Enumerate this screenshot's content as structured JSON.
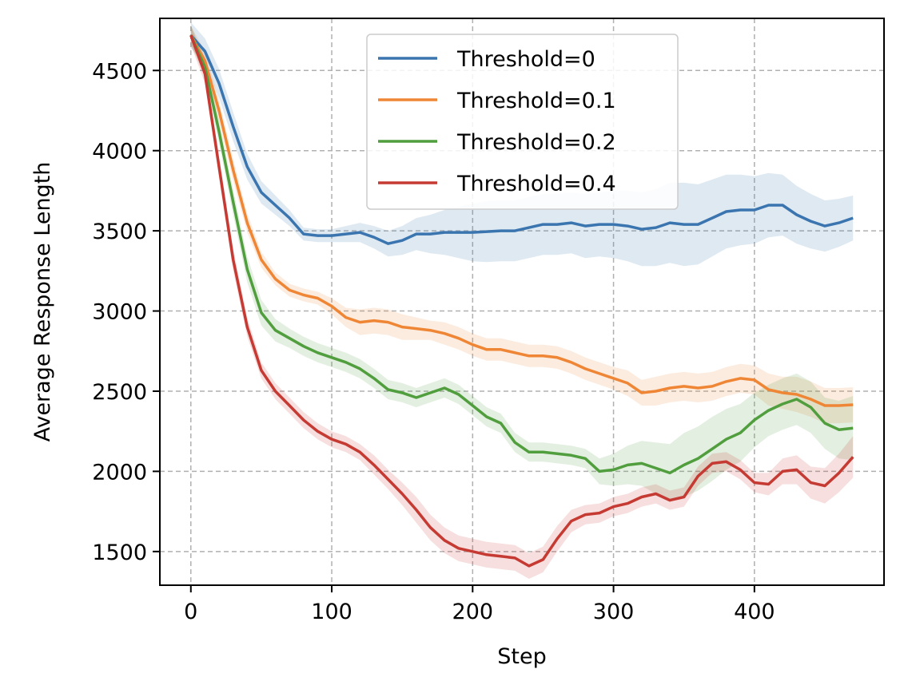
{
  "chart_data": {
    "type": "line",
    "title": "",
    "xlabel": "Step",
    "ylabel": "Average Response Length",
    "xlim": [
      -22,
      492
    ],
    "ylim": [
      1290,
      4825
    ],
    "xticks": [
      0,
      100,
      200,
      300,
      400
    ],
    "yticks": [
      1500,
      2000,
      2500,
      3000,
      3500,
      4000,
      4500
    ],
    "grid": true,
    "legend_position": "upper-center",
    "x": [
      0,
      10,
      20,
      30,
      40,
      50,
      60,
      70,
      80,
      90,
      100,
      110,
      120,
      130,
      140,
      150,
      160,
      170,
      180,
      190,
      200,
      210,
      220,
      230,
      240,
      250,
      260,
      270,
      280,
      290,
      300,
      310,
      320,
      330,
      340,
      350,
      360,
      370,
      380,
      390,
      400,
      410,
      420,
      430,
      440,
      450,
      460,
      470
    ],
    "series": [
      {
        "name": "Threshold=0",
        "color": "#3b75af",
        "values": [
          4720,
          4620,
          4420,
          4150,
          3900,
          3740,
          3660,
          3580,
          3480,
          3470,
          3470,
          3480,
          3490,
          3460,
          3420,
          3440,
          3480,
          3480,
          3490,
          3490,
          3490,
          3495,
          3500,
          3500,
          3520,
          3540,
          3540,
          3550,
          3530,
          3540,
          3540,
          3530,
          3510,
          3520,
          3550,
          3540,
          3540,
          3580,
          3620,
          3630,
          3630,
          3660,
          3660,
          3600,
          3560,
          3530,
          3550,
          3580
        ],
        "band": [
          80,
          80,
          90,
          90,
          80,
          70,
          60,
          50,
          40,
          40,
          40,
          50,
          60,
          70,
          80,
          90,
          100,
          120,
          140,
          160,
          180,
          190,
          190,
          190,
          190,
          190,
          190,
          190,
          200,
          200,
          210,
          220,
          230,
          240,
          250,
          260,
          250,
          240,
          230,
          220,
          210,
          200,
          190,
          180,
          170,
          160,
          150,
          140
        ]
      },
      {
        "name": "Threshold=0.1",
        "color": "#ef8636",
        "values": [
          4720,
          4560,
          4250,
          3880,
          3550,
          3320,
          3200,
          3130,
          3100,
          3080,
          3030,
          2960,
          2930,
          2940,
          2930,
          2900,
          2890,
          2880,
          2860,
          2830,
          2790,
          2760,
          2760,
          2740,
          2720,
          2720,
          2710,
          2680,
          2640,
          2610,
          2580,
          2550,
          2490,
          2500,
          2520,
          2530,
          2520,
          2530,
          2560,
          2580,
          2570,
          2510,
          2490,
          2480,
          2450,
          2410,
          2410,
          2415
        ],
        "band": [
          60,
          60,
          70,
          70,
          60,
          50,
          40,
          40,
          40,
          40,
          50,
          60,
          80,
          80,
          80,
          80,
          70,
          60,
          70,
          70,
          70,
          70,
          70,
          70,
          70,
          70,
          70,
          70,
          70,
          70,
          70,
          80,
          80,
          90,
          90,
          90,
          90,
          90,
          90,
          90,
          90,
          100,
          100,
          110,
          110,
          110,
          110,
          110
        ]
      },
      {
        "name": "Threshold=0.2",
        "color": "#519e3e",
        "values": [
          4720,
          4520,
          4120,
          3680,
          3260,
          2990,
          2880,
          2830,
          2780,
          2740,
          2710,
          2680,
          2640,
          2580,
          2510,
          2490,
          2460,
          2490,
          2520,
          2480,
          2410,
          2340,
          2300,
          2180,
          2120,
          2120,
          2110,
          2100,
          2080,
          2000,
          2010,
          2040,
          2050,
          2020,
          1990,
          2040,
          2080,
          2140,
          2200,
          2240,
          2320,
          2380,
          2420,
          2450,
          2400,
          2300,
          2260,
          2270
        ],
        "band": [
          60,
          60,
          70,
          80,
          80,
          80,
          70,
          60,
          60,
          60,
          60,
          60,
          60,
          60,
          60,
          60,
          60,
          60,
          60,
          60,
          60,
          60,
          60,
          60,
          60,
          60,
          60,
          60,
          60,
          80,
          100,
          120,
          140,
          160,
          180,
          200,
          200,
          200,
          190,
          180,
          170,
          160,
          160,
          160,
          160,
          160,
          180,
          200
        ]
      },
      {
        "name": "Threshold=0.4",
        "color": "#c53a32",
        "values": [
          4720,
          4480,
          3900,
          3320,
          2900,
          2630,
          2500,
          2410,
          2320,
          2250,
          2200,
          2170,
          2120,
          2040,
          1950,
          1860,
          1760,
          1650,
          1570,
          1520,
          1500,
          1480,
          1470,
          1460,
          1410,
          1450,
          1580,
          1690,
          1730,
          1740,
          1780,
          1800,
          1840,
          1860,
          1820,
          1840,
          1970,
          2050,
          2060,
          2010,
          1930,
          1920,
          2000,
          2010,
          1930,
          1910,
          1990,
          2090
        ],
        "band": [
          60,
          60,
          70,
          70,
          60,
          50,
          50,
          50,
          50,
          50,
          50,
          50,
          50,
          60,
          60,
          70,
          80,
          80,
          80,
          80,
          80,
          80,
          80,
          80,
          80,
          80,
          80,
          70,
          60,
          60,
          60,
          60,
          60,
          60,
          60,
          60,
          60,
          60,
          60,
          60,
          60,
          70,
          80,
          90,
          100,
          110,
          120,
          130
        ]
      }
    ]
  }
}
